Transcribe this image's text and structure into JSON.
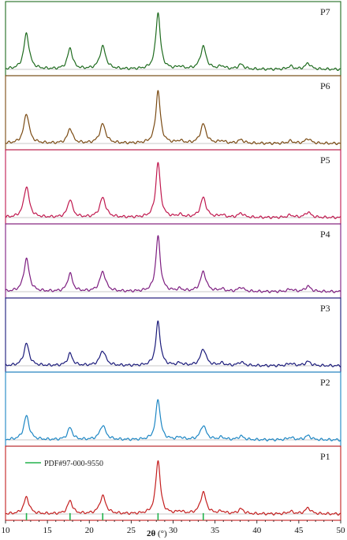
{
  "chart_data": {
    "type": "line",
    "title": "",
    "xlabel_symbol": "2θ",
    "xlabel_unit": " (°)",
    "ylabel": "",
    "xlim": [
      10,
      50
    ],
    "xticks": [
      10,
      15,
      20,
      25,
      30,
      35,
      40,
      45,
      50
    ],
    "grid": false,
    "peak_widths_deg2theta": [
      0.38,
      0.35,
      0.42,
      0.32,
      0.38,
      0.4,
      0.4,
      0.4,
      0.4,
      0.4
    ],
    "series": [
      {
        "name": "P7",
        "color": "#1e6b1e",
        "peaks": [
          {
            "x": 12.5,
            "y": 0.6
          },
          {
            "x": 17.7,
            "y": 0.35
          },
          {
            "x": 21.6,
            "y": 0.38
          },
          {
            "x": 28.2,
            "y": 0.95
          },
          {
            "x": 30.8,
            "y": 0.04
          },
          {
            "x": 33.6,
            "y": 0.38
          },
          {
            "x": 35.8,
            "y": 0.05
          },
          {
            "x": 38.1,
            "y": 0.08
          },
          {
            "x": 44.0,
            "y": 0.05
          },
          {
            "x": 46.1,
            "y": 0.1
          }
        ]
      },
      {
        "name": "P6",
        "color": "#7a4a12",
        "peaks": [
          {
            "x": 12.5,
            "y": 0.5
          },
          {
            "x": 17.7,
            "y": 0.25
          },
          {
            "x": 21.6,
            "y": 0.32
          },
          {
            "x": 28.2,
            "y": 0.88
          },
          {
            "x": 30.8,
            "y": 0.04
          },
          {
            "x": 33.6,
            "y": 0.32
          },
          {
            "x": 35.8,
            "y": 0.04
          },
          {
            "x": 38.1,
            "y": 0.06
          },
          {
            "x": 44.0,
            "y": 0.04
          },
          {
            "x": 46.1,
            "y": 0.08
          }
        ]
      },
      {
        "name": "P5",
        "color": "#c0184e",
        "peaks": [
          {
            "x": 12.5,
            "y": 0.52
          },
          {
            "x": 17.7,
            "y": 0.3
          },
          {
            "x": 21.6,
            "y": 0.33
          },
          {
            "x": 28.2,
            "y": 0.92
          },
          {
            "x": 30.8,
            "y": 0.04
          },
          {
            "x": 33.6,
            "y": 0.33
          },
          {
            "x": 35.8,
            "y": 0.04
          },
          {
            "x": 38.1,
            "y": 0.07
          },
          {
            "x": 44.0,
            "y": 0.04
          },
          {
            "x": 46.1,
            "y": 0.09
          }
        ]
      },
      {
        "name": "P4",
        "color": "#7d1d80",
        "peaks": [
          {
            "x": 12.5,
            "y": 0.55
          },
          {
            "x": 17.7,
            "y": 0.3
          },
          {
            "x": 21.6,
            "y": 0.33
          },
          {
            "x": 28.2,
            "y": 0.92
          },
          {
            "x": 30.8,
            "y": 0.04
          },
          {
            "x": 33.6,
            "y": 0.33
          },
          {
            "x": 35.8,
            "y": 0.04
          },
          {
            "x": 38.1,
            "y": 0.07
          },
          {
            "x": 44.0,
            "y": 0.04
          },
          {
            "x": 46.1,
            "y": 0.09
          }
        ]
      },
      {
        "name": "P3",
        "color": "#1a1a7a",
        "peaks": [
          {
            "x": 12.5,
            "y": 0.37
          },
          {
            "x": 17.7,
            "y": 0.2
          },
          {
            "x": 21.6,
            "y": 0.25
          },
          {
            "x": 28.2,
            "y": 0.73
          },
          {
            "x": 30.8,
            "y": 0.04
          },
          {
            "x": 33.6,
            "y": 0.28
          },
          {
            "x": 35.8,
            "y": 0.04
          },
          {
            "x": 38.1,
            "y": 0.06
          },
          {
            "x": 44.0,
            "y": 0.04
          },
          {
            "x": 46.1,
            "y": 0.07
          }
        ]
      },
      {
        "name": "P2",
        "color": "#1c86c4",
        "peaks": [
          {
            "x": 12.5,
            "y": 0.4
          },
          {
            "x": 17.7,
            "y": 0.2
          },
          {
            "x": 21.6,
            "y": 0.24
          },
          {
            "x": 28.2,
            "y": 0.68
          },
          {
            "x": 30.8,
            "y": 0.04
          },
          {
            "x": 33.6,
            "y": 0.24
          },
          {
            "x": 35.8,
            "y": 0.04
          },
          {
            "x": 38.1,
            "y": 0.06
          },
          {
            "x": 44.0,
            "y": 0.04
          },
          {
            "x": 46.1,
            "y": 0.07
          }
        ]
      },
      {
        "name": "P1",
        "color": "#c41e1e",
        "peaks": [
          {
            "x": 12.5,
            "y": 0.28
          },
          {
            "x": 17.7,
            "y": 0.22
          },
          {
            "x": 21.6,
            "y": 0.3
          },
          {
            "x": 28.2,
            "y": 0.9
          },
          {
            "x": 30.8,
            "y": 0.04
          },
          {
            "x": 33.6,
            "y": 0.36
          },
          {
            "x": 35.8,
            "y": 0.04
          },
          {
            "x": 38.1,
            "y": 0.08
          },
          {
            "x": 44.0,
            "y": 0.04
          },
          {
            "x": 46.1,
            "y": 0.1
          }
        ]
      }
    ],
    "reference": {
      "name": "PDF#97-000-9550",
      "color": "#22b24c",
      "positions": [
        12.5,
        17.7,
        21.6,
        28.2,
        33.6
      ],
      "heights": [
        0.12,
        0.12,
        0.12,
        0.12,
        0.12
      ]
    }
  }
}
